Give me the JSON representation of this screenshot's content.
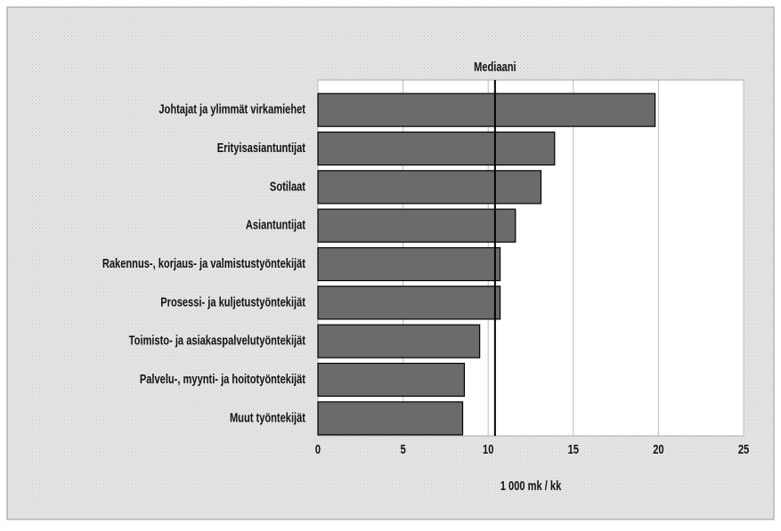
{
  "chart_data": {
    "type": "barh",
    "categories": [
      "Johtajat ja ylimmät virkamiehet",
      "Erityisasiantuntijat",
      "Sotilaat",
      "Asiantuntijat",
      "Rakennus-, korjaus- ja valmistustyöntekijät",
      "Prosessi- ja kuljetustyöntekijät",
      "Toimisto- ja asiakaspalvelutyöntekijät",
      "Palvelu-, myynti- ja hoitotyöntekijät",
      "Muut työntekijät"
    ],
    "values": [
      19.8,
      13.9,
      13.1,
      11.6,
      10.7,
      10.7,
      9.5,
      8.6,
      8.5
    ],
    "color": "#6b6b6b",
    "xlim": [
      0,
      25
    ],
    "xticks": [
      0,
      5,
      10,
      15,
      20,
      25
    ],
    "grid": true,
    "xlabel": "1 000 mk / kk",
    "median": {
      "label": "Mediaani",
      "value": 10.4
    }
  }
}
